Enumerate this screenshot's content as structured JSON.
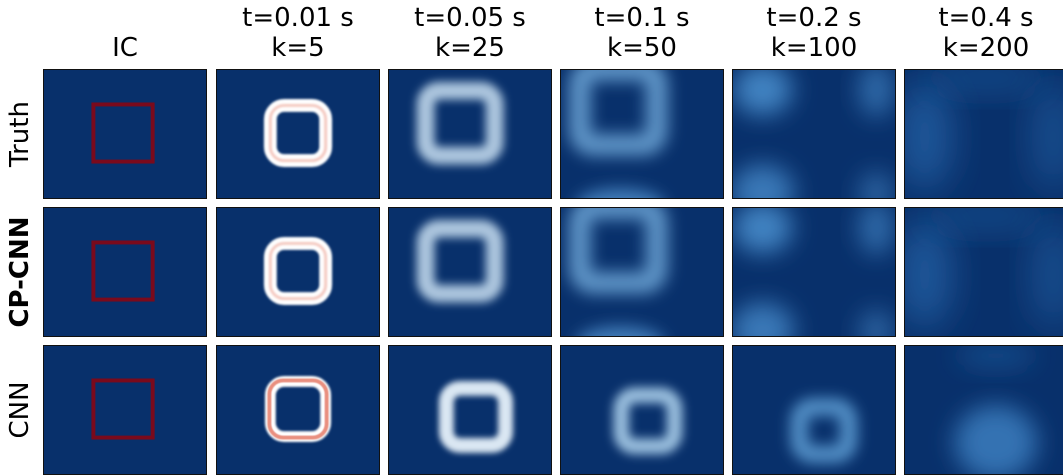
{
  "columns": [
    {
      "line1": "",
      "line2": "IC"
    },
    {
      "line1": "t=0.01 s",
      "line2": "k=5"
    },
    {
      "line1": "t=0.05 s",
      "line2": "k=25"
    },
    {
      "line1": "t=0.1 s",
      "line2": "k=50"
    },
    {
      "line1": "t=0.2 s",
      "line2": "k=100"
    },
    {
      "line1": "t=0.4 s",
      "line2": "k=200"
    }
  ],
  "rows": [
    {
      "label": "Truth",
      "bold": false
    },
    {
      "label": "CP-CNN",
      "bold": true
    },
    {
      "label": "CNN",
      "bold": false
    }
  ],
  "colors": {
    "background": "#08306b",
    "ic_square": "#7a0a1c",
    "ring_hot": "#ffffff",
    "ring_warm": "#e0604a",
    "blob": "#4a90d0"
  }
}
